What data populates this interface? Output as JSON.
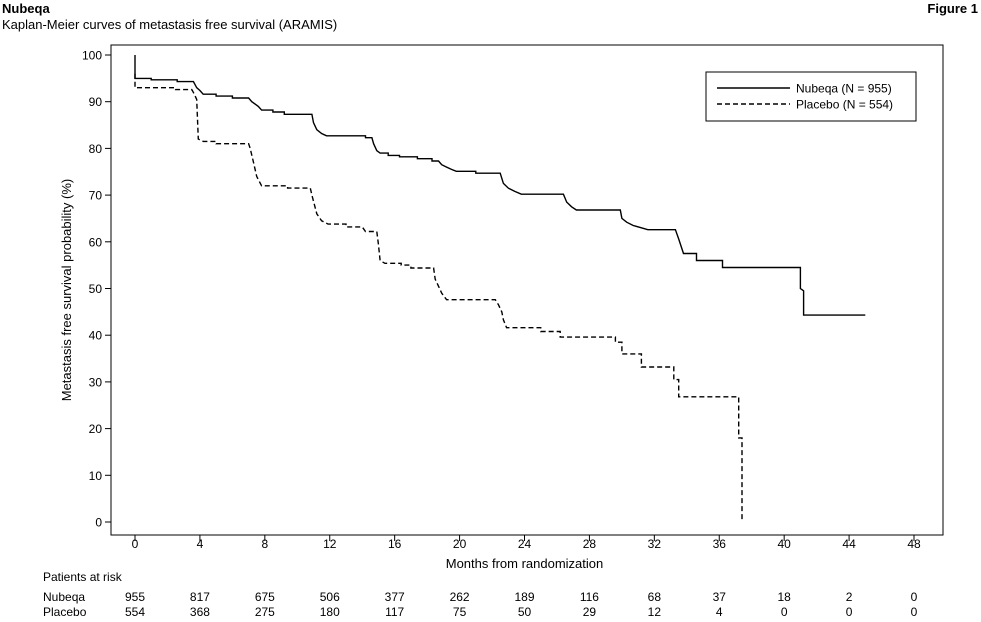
{
  "header": {
    "brand": "Nubeqa",
    "subtitle": "Kaplan-Meier curves of metastasis free survival (ARAMIS)",
    "figure_label": "Figure 1"
  },
  "chart_data": {
    "type": "line",
    "step": true,
    "xlabel": "Months from randomization",
    "ylabel": "Metastasis free survival probability (%)",
    "xlim": [
      0,
      48
    ],
    "ylim": [
      0,
      100
    ],
    "xticks": [
      0,
      4,
      8,
      12,
      16,
      20,
      24,
      28,
      32,
      36,
      40,
      44,
      48
    ],
    "yticks": [
      0,
      10,
      20,
      30,
      40,
      50,
      60,
      70,
      80,
      90,
      100
    ],
    "grid": false,
    "legend_position": "top-right",
    "series": [
      {
        "name": "Nubeqa (N = 955)",
        "style": "solid",
        "color": "#000000",
        "points": [
          [
            0,
            100
          ],
          [
            0,
            95
          ],
          [
            1,
            95
          ],
          [
            1,
            94.7
          ],
          [
            2.6,
            94.7
          ],
          [
            2.6,
            94.3
          ],
          [
            3.6,
            94.3
          ],
          [
            3.8,
            93
          ],
          [
            4,
            92.4
          ],
          [
            4.2,
            91.6
          ],
          [
            5,
            91.6
          ],
          [
            5,
            91.2
          ],
          [
            6,
            91.2
          ],
          [
            6,
            90.8
          ],
          [
            7,
            90.8
          ],
          [
            7.2,
            90
          ],
          [
            7.6,
            89
          ],
          [
            7.8,
            88.2
          ],
          [
            8.5,
            88.2
          ],
          [
            8.5,
            87.8
          ],
          [
            9.2,
            87.8
          ],
          [
            9.2,
            87.3
          ],
          [
            10.9,
            87.3
          ],
          [
            11,
            85.5
          ],
          [
            11.2,
            84
          ],
          [
            11.5,
            83.2
          ],
          [
            11.8,
            82.7
          ],
          [
            14.2,
            82.7
          ],
          [
            14.2,
            82.3
          ],
          [
            14.6,
            82.3
          ],
          [
            14.7,
            81
          ],
          [
            14.9,
            79.5
          ],
          [
            15.1,
            79
          ],
          [
            15.6,
            79
          ],
          [
            15.6,
            78.5
          ],
          [
            16.3,
            78.5
          ],
          [
            16.3,
            78.2
          ],
          [
            17.4,
            78.2
          ],
          [
            17.4,
            77.8
          ],
          [
            18.3,
            77.8
          ],
          [
            18.3,
            77.3
          ],
          [
            18.7,
            77.3
          ],
          [
            18.9,
            76.5
          ],
          [
            19.2,
            76
          ],
          [
            19.5,
            75.5
          ],
          [
            19.8,
            75.1
          ],
          [
            21,
            75.1
          ],
          [
            21,
            74.7
          ],
          [
            22.5,
            74.7
          ],
          [
            22.7,
            72.5
          ],
          [
            23,
            71.5
          ],
          [
            23.4,
            70.8
          ],
          [
            23.8,
            70.2
          ],
          [
            26.4,
            70.2
          ],
          [
            26.6,
            68.5
          ],
          [
            26.9,
            67.5
          ],
          [
            27.2,
            66.8
          ],
          [
            29.9,
            66.8
          ],
          [
            30,
            65
          ],
          [
            30.3,
            64.2
          ],
          [
            30.7,
            63.5
          ],
          [
            31.2,
            63
          ],
          [
            31.6,
            62.6
          ],
          [
            33.3,
            62.6
          ],
          [
            33.5,
            60.6
          ],
          [
            33.8,
            57.5
          ],
          [
            34.6,
            57.5
          ],
          [
            34.6,
            56
          ],
          [
            36.2,
            56
          ],
          [
            36.2,
            54.5
          ],
          [
            41,
            54.5
          ],
          [
            41,
            50
          ],
          [
            41.2,
            49.5
          ],
          [
            41.2,
            44.3
          ],
          [
            45,
            44.3
          ]
        ]
      },
      {
        "name": "Placebo (N = 554)",
        "style": "dashed",
        "color": "#000000",
        "points": [
          [
            0,
            96
          ],
          [
            0,
            93
          ],
          [
            2.5,
            93
          ],
          [
            2.5,
            92.6
          ],
          [
            3.5,
            92.6
          ],
          [
            3.6,
            92
          ],
          [
            3.8,
            90.5
          ],
          [
            3.9,
            82
          ],
          [
            4.2,
            81.5
          ],
          [
            5,
            81.5
          ],
          [
            5,
            81
          ],
          [
            7,
            81
          ],
          [
            7.1,
            80
          ],
          [
            7.3,
            77
          ],
          [
            7.5,
            74
          ],
          [
            7.8,
            72
          ],
          [
            9.4,
            72
          ],
          [
            9.4,
            71.5
          ],
          [
            10.8,
            71.5
          ],
          [
            10.9,
            70
          ],
          [
            11.2,
            66
          ],
          [
            11.5,
            64.5
          ],
          [
            11.9,
            63.8
          ],
          [
            13,
            63.8
          ],
          [
            13,
            63.2
          ],
          [
            14,
            63.2
          ],
          [
            14.2,
            62.2
          ],
          [
            14.9,
            62.2
          ],
          [
            15,
            59.5
          ],
          [
            15.1,
            56
          ],
          [
            15.4,
            55.4
          ],
          [
            16.4,
            55.4
          ],
          [
            16.4,
            55
          ],
          [
            17,
            55
          ],
          [
            17,
            54.4
          ],
          [
            18.4,
            54.4
          ],
          [
            18.5,
            52
          ],
          [
            18.7,
            50.5
          ],
          [
            18.9,
            49
          ],
          [
            19.2,
            47.6
          ],
          [
            22.2,
            47.6
          ],
          [
            22.4,
            46.5
          ],
          [
            22.6,
            45
          ],
          [
            22.7,
            43.3
          ],
          [
            22.9,
            41.6
          ],
          [
            25,
            41.6
          ],
          [
            25,
            40.8
          ],
          [
            26.2,
            40.8
          ],
          [
            26.2,
            39.6
          ],
          [
            29.6,
            39.6
          ],
          [
            29.6,
            38.5
          ],
          [
            30,
            38.5
          ],
          [
            30,
            36
          ],
          [
            31.2,
            36
          ],
          [
            31.2,
            33.2
          ],
          [
            33.2,
            33.2
          ],
          [
            33.2,
            30.5
          ],
          [
            33.5,
            30.5
          ],
          [
            33.5,
            26.8
          ],
          [
            37.2,
            26.8
          ],
          [
            37.2,
            18
          ],
          [
            37.4,
            18
          ],
          [
            37.4,
            0
          ]
        ]
      }
    ],
    "risk_table": {
      "title": "Patients at risk",
      "times": [
        0,
        4,
        8,
        12,
        16,
        20,
        24,
        28,
        32,
        36,
        40,
        44,
        48
      ],
      "rows": [
        {
          "label": "Nubeqa",
          "values": [
            "955",
            "817",
            "675",
            "506",
            "377",
            "262",
            "189",
            "116",
            "68",
            "37",
            "18",
            "2",
            "0"
          ]
        },
        {
          "label": "Placebo",
          "values": [
            "554",
            "368",
            "275",
            "180",
            "117",
            "75",
            "50",
            "29",
            "12",
            "4",
            "0",
            "0",
            "0"
          ]
        }
      ]
    }
  }
}
